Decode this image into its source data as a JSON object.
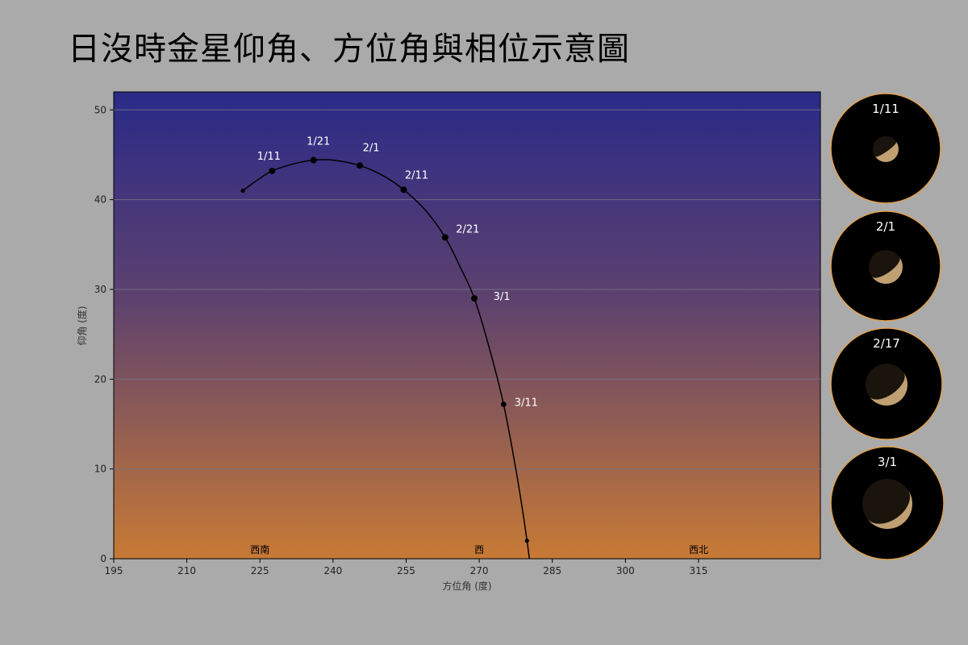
{
  "page": {
    "title": "日沒時金星仰角、方位角與相位示意圖"
  },
  "colors": {
    "background": "#aaaaaa",
    "sky_top": "#2a2a88",
    "sky_bottom": "#c87a35",
    "curve": "#000000",
    "label": "#ffffff",
    "phase_ring": "#e0a050",
    "venus_light": "#c9a878"
  },
  "chart_data": {
    "type": "line",
    "title": "",
    "xlabel": "方位角 (度)",
    "ylabel": "仰角 (度)",
    "xlim": [
      195,
      340
    ],
    "ylim": [
      0,
      52
    ],
    "xticks": [
      195,
      210,
      225,
      240,
      255,
      270,
      285,
      300,
      315
    ],
    "yticks": [
      0,
      10,
      20,
      30,
      40,
      50
    ],
    "grid": "horizontal",
    "direction_labels": [
      {
        "text": "西南",
        "x": 225
      },
      {
        "text": "西",
        "x": 270
      },
      {
        "text": "西北",
        "x": 315
      }
    ],
    "curve": [
      {
        "x": 221.5,
        "y": 41.0
      },
      {
        "x": 224.0,
        "y": 42.0
      },
      {
        "x": 227.5,
        "y": 43.2
      },
      {
        "x": 232.0,
        "y": 44.0
      },
      {
        "x": 236.0,
        "y": 44.4
      },
      {
        "x": 240.0,
        "y": 44.4
      },
      {
        "x": 245.5,
        "y": 43.8
      },
      {
        "x": 250.5,
        "y": 42.6
      },
      {
        "x": 254.5,
        "y": 41.1
      },
      {
        "x": 259.0,
        "y": 38.8
      },
      {
        "x": 263.0,
        "y": 35.8
      },
      {
        "x": 266.0,
        "y": 32.6
      },
      {
        "x": 269.0,
        "y": 29.0
      },
      {
        "x": 272.0,
        "y": 23.6
      },
      {
        "x": 275.0,
        "y": 17.2
      },
      {
        "x": 277.5,
        "y": 10.0
      },
      {
        "x": 279.0,
        "y": 5.0
      },
      {
        "x": 279.8,
        "y": 2.0
      },
      {
        "x": 280.3,
        "y": 0.0
      }
    ],
    "points": [
      {
        "label": "",
        "x": 221.5,
        "y": 41.0,
        "size": "small"
      },
      {
        "label": "1/11",
        "x": 227.5,
        "y": 43.2,
        "size": "large"
      },
      {
        "label": "1/21",
        "x": 236.0,
        "y": 44.4,
        "size": "large"
      },
      {
        "label": "2/1",
        "x": 245.5,
        "y": 43.8,
        "size": "large"
      },
      {
        "label": "2/11",
        "x": 254.5,
        "y": 41.1,
        "size": "large"
      },
      {
        "label": "2/21",
        "x": 263.0,
        "y": 35.8,
        "size": "large"
      },
      {
        "label": "3/1",
        "x": 269.0,
        "y": 29.0,
        "size": "large"
      },
      {
        "label": "3/11",
        "x": 275.0,
        "y": 17.2,
        "size": "medium"
      },
      {
        "label": "",
        "x": 279.8,
        "y": 2.0,
        "size": "small"
      }
    ]
  },
  "phases": [
    {
      "date": "1/11",
      "illumination": 0.42
    },
    {
      "date": "2/1",
      "illumination": 0.3
    },
    {
      "date": "2/17",
      "illumination": 0.2
    },
    {
      "date": "3/1",
      "illumination": 0.1
    }
  ]
}
